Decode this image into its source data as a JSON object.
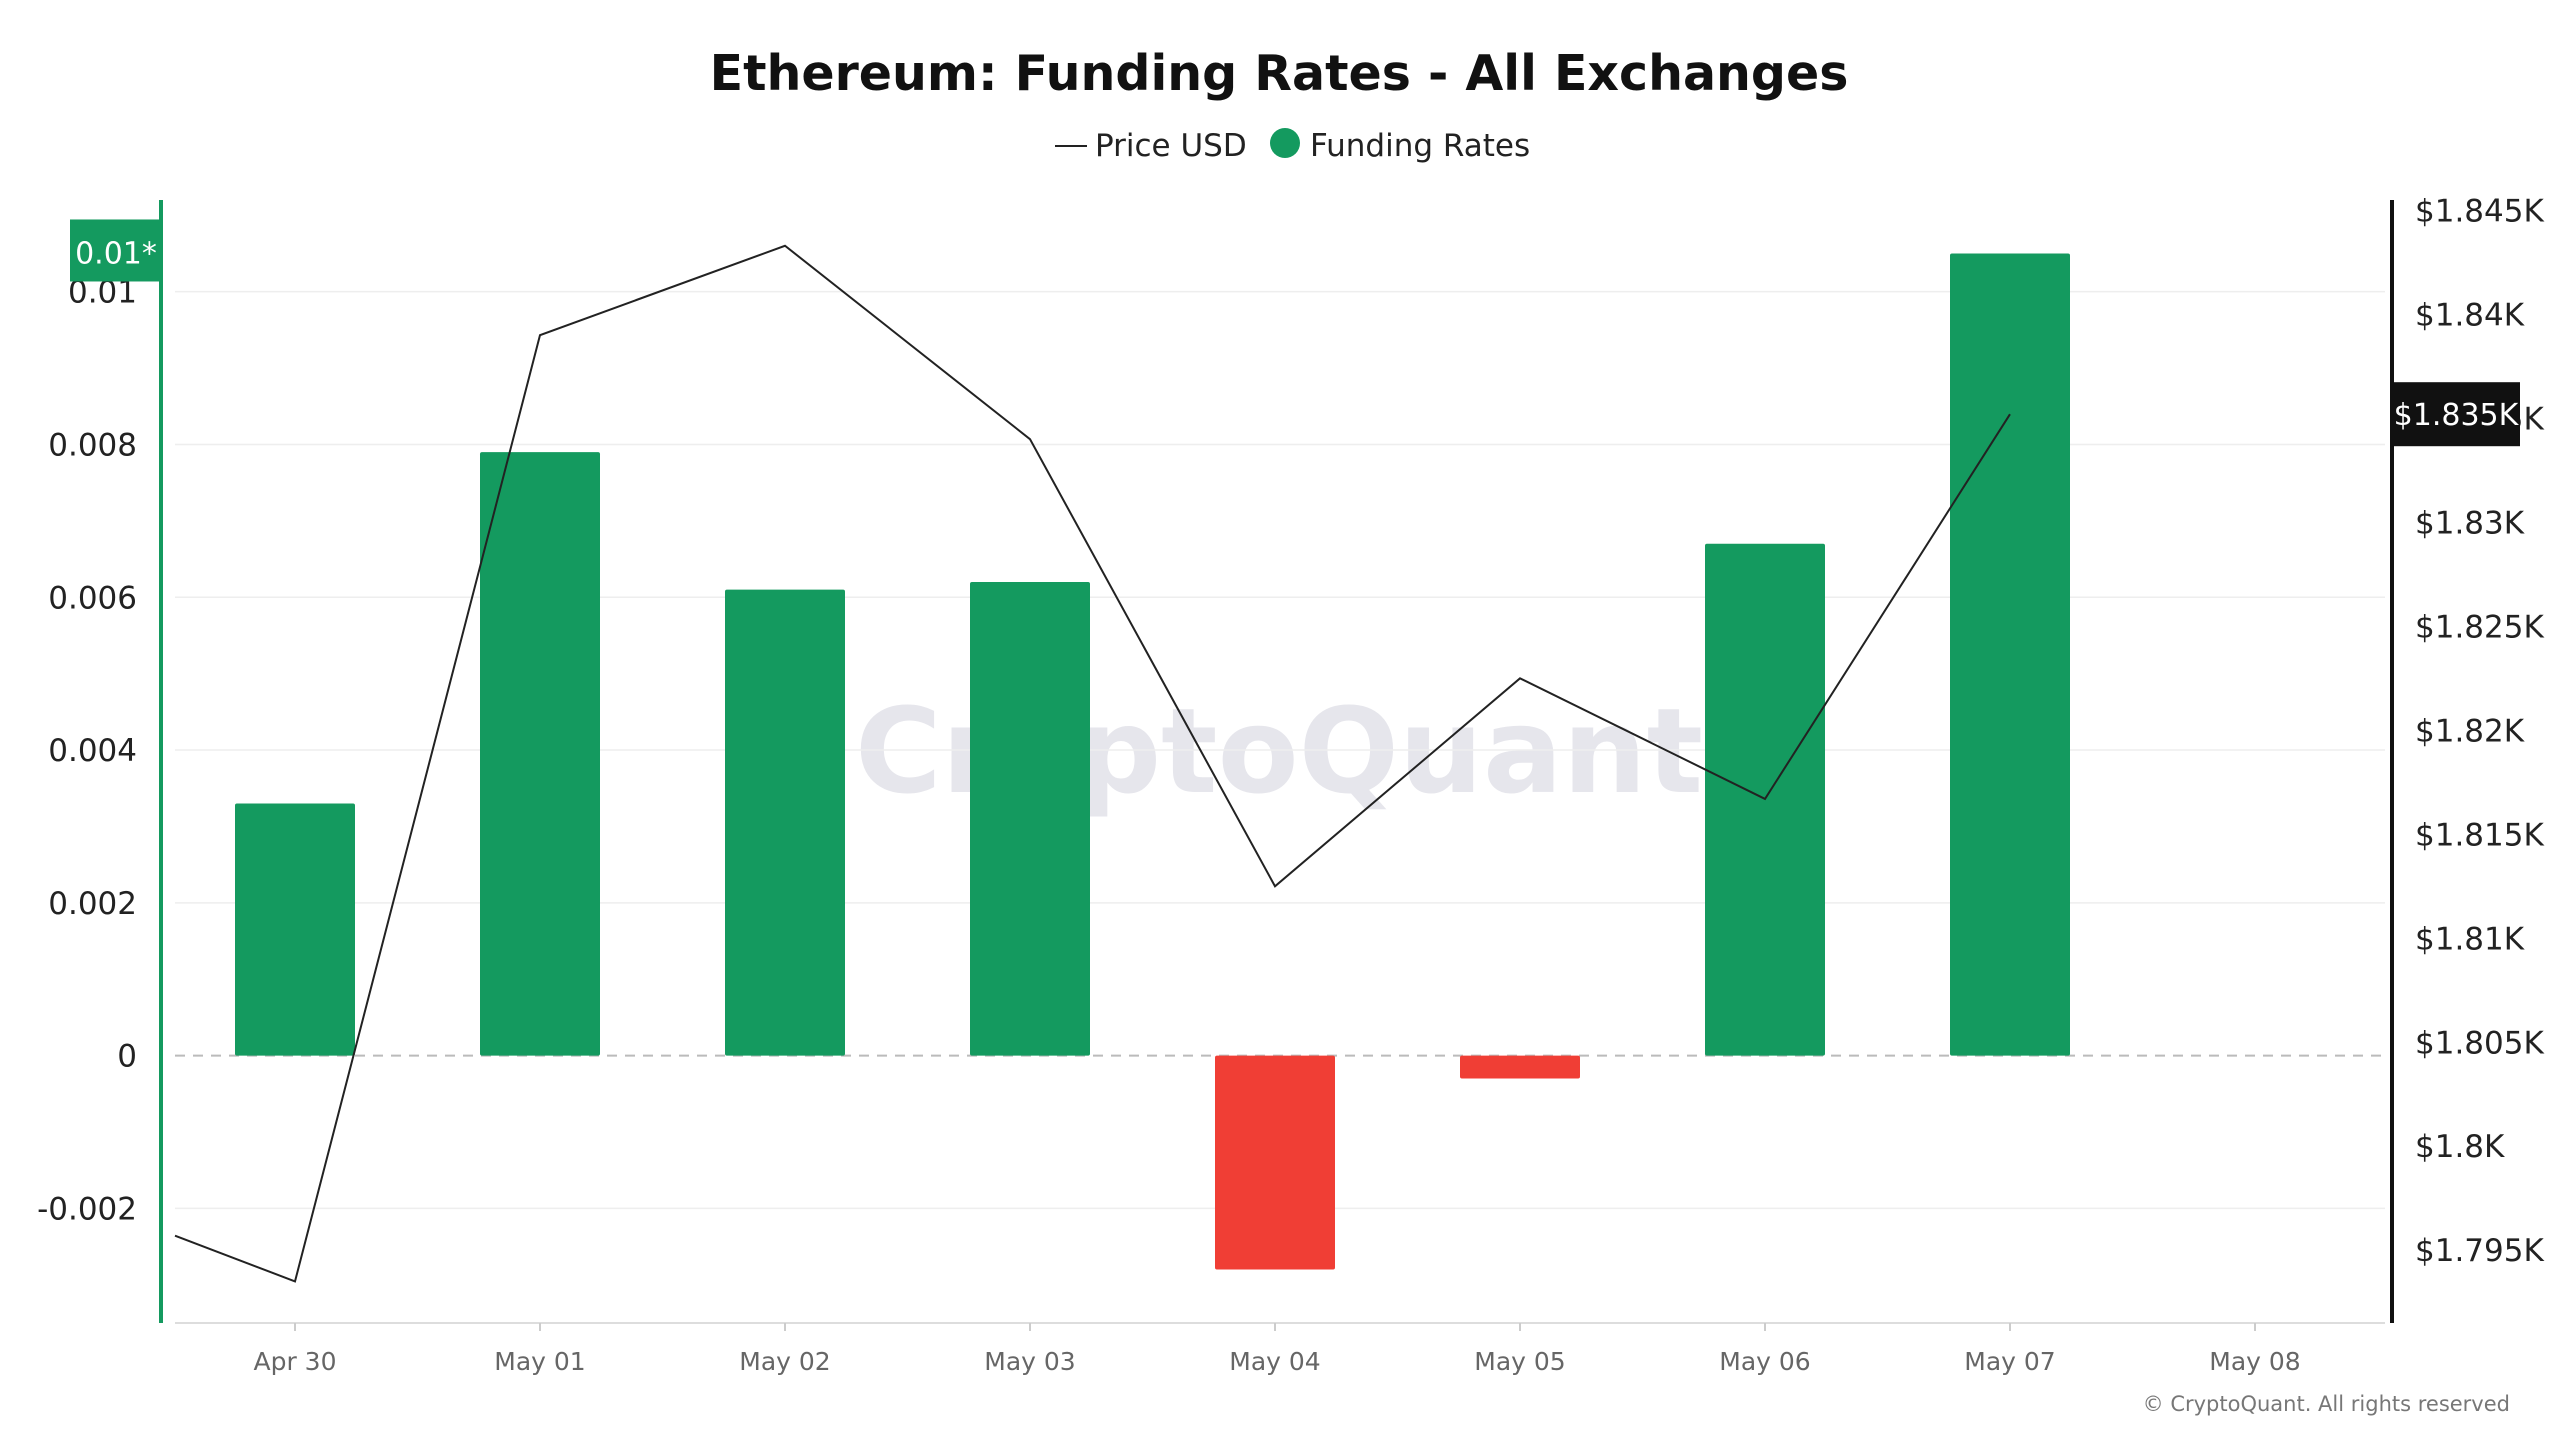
{
  "chart_data": {
    "type": "bar",
    "title": "Ethereum: Funding Rates - All Exchanges",
    "categories": [
      "Apr 30",
      "May 01",
      "May 02",
      "May 03",
      "May 04",
      "May 05",
      "May 06",
      "May 07",
      "May 08"
    ],
    "series": [
      {
        "name": "Funding Rates",
        "type": "bar",
        "axis": "left",
        "values": [
          0.0033,
          0.0079,
          0.0061,
          0.0062,
          -0.0028,
          -0.0003,
          0.0067,
          0.0105,
          null
        ]
      },
      {
        "name": "Price USD",
        "type": "line",
        "axis": "right",
        "values": [
          1793.5,
          1839.0,
          1843.3,
          1834.0,
          1812.5,
          1822.5,
          1816.7,
          1835.2,
          null
        ],
        "start_value": 1795.7
      }
    ],
    "left_axis": {
      "ticks": [
        -0.002,
        0,
        0.002,
        0.004,
        0.006,
        0.008,
        0.01
      ],
      "tick_labels": [
        "-0.002",
        "0",
        "0.002",
        "0.004",
        "0.006",
        "0.008",
        "0.01"
      ],
      "range": [
        -0.0035,
        0.0112
      ]
    },
    "right_axis": {
      "ticks": [
        1795,
        1800,
        1805,
        1810,
        1815,
        1820,
        1825,
        1830,
        1835,
        1840,
        1845
      ],
      "tick_labels": [
        "$1.795K",
        "$1.8K",
        "$1.805K",
        "$1.81K",
        "$1.815K",
        "$1.82K",
        "$1.825K",
        "$1.83K",
        "$1.835K",
        "$1.84K",
        "$1.845K"
      ],
      "range": [
        1791.5,
        1845.5
      ]
    },
    "legend": {
      "position": "top-center",
      "items": [
        "Price USD",
        "Funding Rates"
      ]
    },
    "current_value_badge_left": "0.01*",
    "current_value_badge_right": "$1.835K",
    "watermark": "CryptoQuant",
    "copyright": "© CryptoQuant. All rights reserved"
  },
  "colors": {
    "positive": "#149a5f",
    "negative": "#f03e35",
    "line": "#222222",
    "grid": "#eeeeee",
    "zero": "#bbbbbb",
    "left_axis": "#149a5f",
    "right_axis": "#111111",
    "badge_right_bg": "#111111"
  }
}
